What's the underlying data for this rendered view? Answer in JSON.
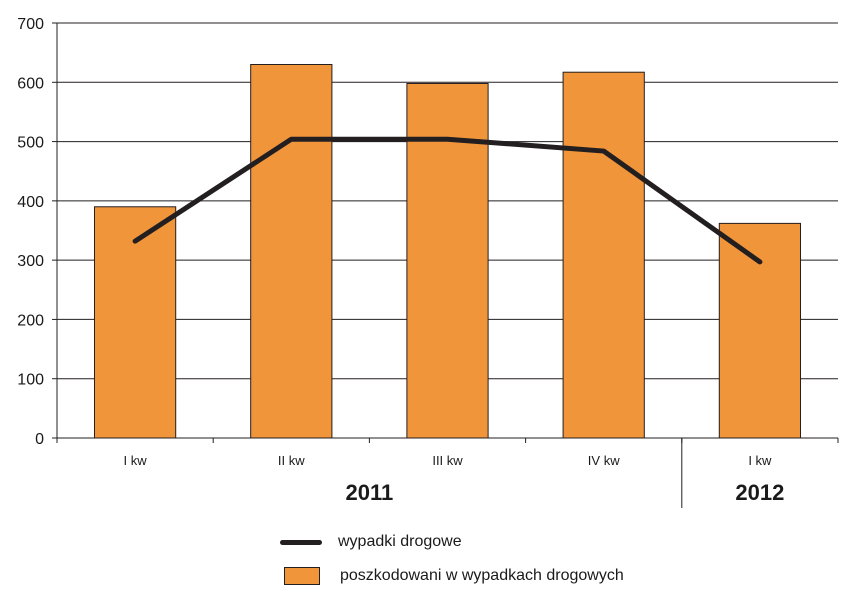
{
  "chart_data": {
    "type": "bar",
    "categories": [
      "I kw",
      "II kw",
      "III kw",
      "IV kw",
      "I kw"
    ],
    "groups": [
      {
        "label": "2011",
        "span": 4
      },
      {
        "label": "2012",
        "span": 1
      }
    ],
    "series": [
      {
        "name": "poszkodowani w wypadkach drogowych",
        "kind": "bar",
        "color": "#f0953a",
        "values": [
          390,
          630,
          598,
          617,
          362
        ]
      },
      {
        "name": "wypadki drogowe",
        "kind": "line",
        "color": "#231f20",
        "values": [
          332,
          504,
          504,
          484,
          297
        ]
      }
    ],
    "ylim": [
      0,
      700
    ],
    "yticks": [
      0,
      100,
      200,
      300,
      400,
      500,
      600,
      700
    ],
    "grid": true,
    "legend_position": "bottom-center",
    "title": "",
    "xlabel": "",
    "ylabel": ""
  }
}
